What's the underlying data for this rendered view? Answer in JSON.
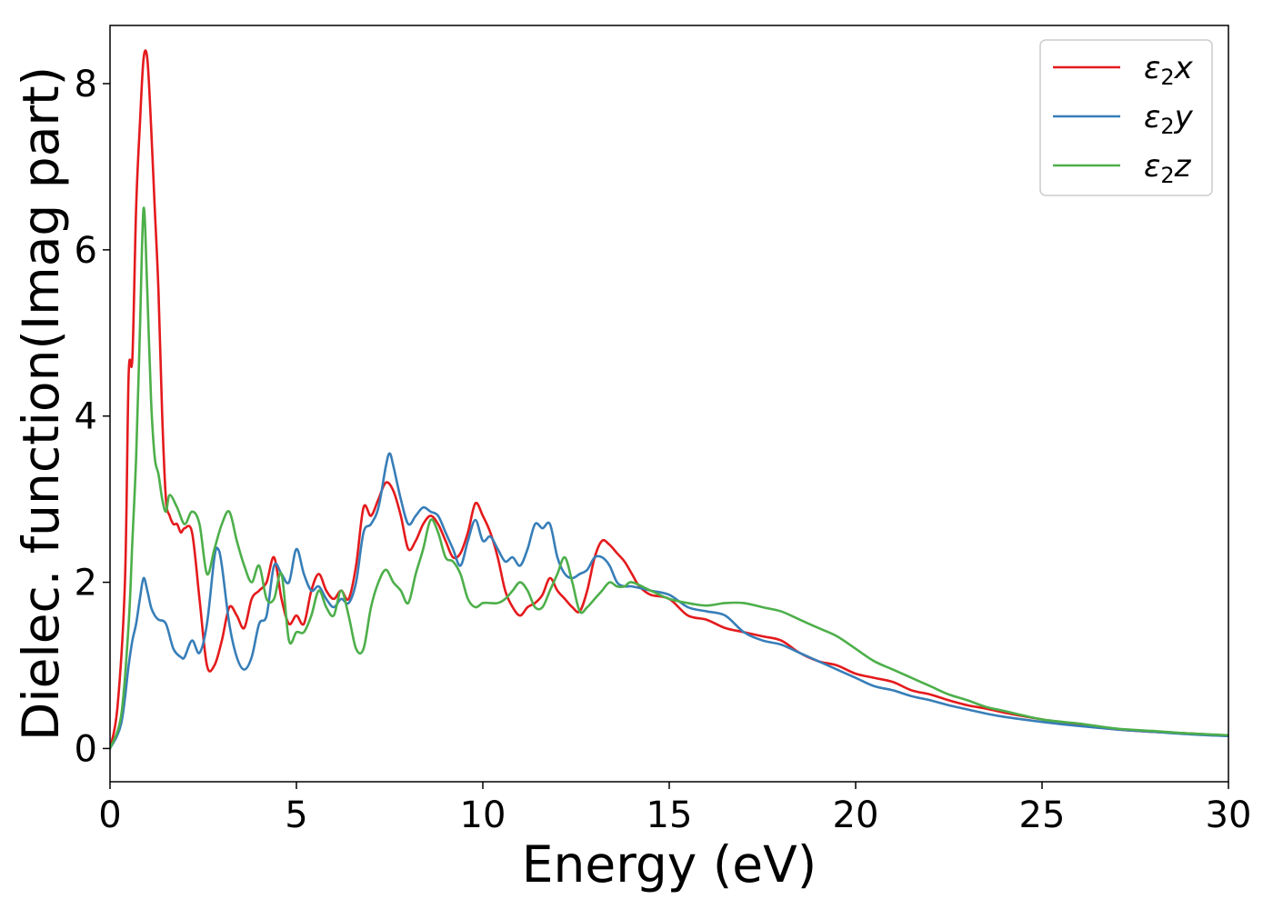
{
  "chart_data": {
    "type": "line",
    "title": "",
    "xlabel": "Energy (eV)",
    "ylabel": "Dielec. function(Imag part)",
    "xlim": [
      0,
      30
    ],
    "ylim": [
      -0.4,
      8.7
    ],
    "xticks": [
      0,
      5,
      10,
      15,
      20,
      25,
      30
    ],
    "yticks": [
      0,
      2,
      4,
      6,
      8
    ],
    "grid": false,
    "legend_position": "top-right",
    "series": [
      {
        "name": "ε2x",
        "legend_base": "ε",
        "legend_sub": "2",
        "legend_var": "x",
        "color": "#e41a1c",
        "x": [
          0,
          0.2,
          0.4,
          0.5,
          0.6,
          0.7,
          0.8,
          0.9,
          1.0,
          1.1,
          1.2,
          1.3,
          1.4,
          1.5,
          1.6,
          1.7,
          1.8,
          1.9,
          2.0,
          2.2,
          2.4,
          2.6,
          2.8,
          3.0,
          3.2,
          3.4,
          3.6,
          3.8,
          4.0,
          4.2,
          4.4,
          4.6,
          4.8,
          5.0,
          5.2,
          5.4,
          5.6,
          5.8,
          6.0,
          6.2,
          6.4,
          6.6,
          6.8,
          7.0,
          7.2,
          7.4,
          7.6,
          7.8,
          8.0,
          8.2,
          8.4,
          8.6,
          8.8,
          9.0,
          9.2,
          9.4,
          9.6,
          9.8,
          10.0,
          10.2,
          10.4,
          10.6,
          10.8,
          11.0,
          11.2,
          11.4,
          11.6,
          11.8,
          12.0,
          12.2,
          12.4,
          12.6,
          12.8,
          13.0,
          13.2,
          13.4,
          13.6,
          13.8,
          14.0,
          14.2,
          14.5,
          15.0,
          15.5,
          16.0,
          16.5,
          17.0,
          17.5,
          18.0,
          18.5,
          19.0,
          19.5,
          20.0,
          20.5,
          21.0,
          21.5,
          22.0,
          22.5,
          23.0,
          23.5,
          24.0,
          25.0,
          26.0,
          27.0,
          28.0,
          29.0,
          30.0
        ],
        "y": [
          0,
          0.5,
          2.0,
          4.5,
          4.7,
          6.5,
          7.5,
          8.3,
          8.3,
          7.5,
          6.5,
          5.5,
          4.0,
          3.0,
          2.8,
          2.7,
          2.7,
          2.6,
          2.65,
          2.6,
          1.8,
          1.0,
          1.0,
          1.3,
          1.7,
          1.6,
          1.45,
          1.8,
          1.9,
          2.0,
          2.3,
          1.8,
          1.5,
          1.6,
          1.5,
          1.9,
          2.1,
          1.9,
          1.8,
          1.9,
          1.8,
          2.2,
          2.9,
          2.8,
          3.0,
          3.2,
          3.1,
          2.8,
          2.4,
          2.5,
          2.7,
          2.8,
          2.7,
          2.5,
          2.3,
          2.35,
          2.6,
          2.95,
          2.8,
          2.6,
          2.3,
          1.9,
          1.7,
          1.6,
          1.7,
          1.75,
          1.85,
          2.05,
          1.9,
          1.8,
          1.7,
          1.65,
          1.9,
          2.3,
          2.5,
          2.45,
          2.35,
          2.25,
          2.1,
          1.95,
          1.85,
          1.8,
          1.6,
          1.55,
          1.45,
          1.4,
          1.35,
          1.3,
          1.15,
          1.05,
          1.0,
          0.9,
          0.85,
          0.8,
          0.7,
          0.65,
          0.58,
          0.52,
          0.48,
          0.43,
          0.35,
          0.28,
          0.23,
          0.2,
          0.18,
          0.15
        ]
      },
      {
        "name": "ε2y",
        "legend_base": "ε",
        "legend_sub": "2",
        "legend_var": "y",
        "color": "#377eb8",
        "x": [
          0,
          0.3,
          0.5,
          0.6,
          0.7,
          0.8,
          0.9,
          1.0,
          1.1,
          1.2,
          1.3,
          1.5,
          1.7,
          1.9,
          2.0,
          2.2,
          2.4,
          2.6,
          2.8,
          2.9,
          3.0,
          3.2,
          3.4,
          3.6,
          3.8,
          4.0,
          4.2,
          4.4,
          4.6,
          4.8,
          5.0,
          5.2,
          5.4,
          5.6,
          5.8,
          6.0,
          6.2,
          6.4,
          6.6,
          6.8,
          7.0,
          7.2,
          7.4,
          7.5,
          7.6,
          7.8,
          8.0,
          8.2,
          8.4,
          8.6,
          8.8,
          9.0,
          9.2,
          9.4,
          9.6,
          9.8,
          10.0,
          10.2,
          10.4,
          10.6,
          10.8,
          11.0,
          11.2,
          11.4,
          11.6,
          11.8,
          12.0,
          12.2,
          12.4,
          12.6,
          12.8,
          13.0,
          13.2,
          13.4,
          13.6,
          13.8,
          14.0,
          14.5,
          15.0,
          15.5,
          16.0,
          16.5,
          17.0,
          17.5,
          18.0,
          18.5,
          19.0,
          19.5,
          20.0,
          20.5,
          21.0,
          21.5,
          22.0,
          22.5,
          23.0,
          23.5,
          24.0,
          25.0,
          26.0,
          27.0,
          28.0,
          29.0,
          30.0
        ],
        "y": [
          0,
          0.3,
          1.0,
          1.3,
          1.5,
          1.8,
          2.05,
          1.9,
          1.7,
          1.6,
          1.55,
          1.5,
          1.2,
          1.1,
          1.1,
          1.3,
          1.15,
          1.5,
          2.3,
          2.4,
          2.2,
          1.5,
          1.1,
          0.95,
          1.1,
          1.5,
          1.6,
          2.2,
          2.1,
          2.0,
          2.4,
          2.1,
          1.9,
          1.95,
          1.8,
          1.7,
          1.8,
          1.75,
          2.0,
          2.6,
          2.7,
          2.9,
          3.4,
          3.55,
          3.4,
          3.0,
          2.7,
          2.8,
          2.9,
          2.85,
          2.8,
          2.6,
          2.4,
          2.2,
          2.5,
          2.75,
          2.5,
          2.55,
          2.4,
          2.25,
          2.3,
          2.2,
          2.4,
          2.7,
          2.65,
          2.7,
          2.3,
          2.1,
          2.05,
          2.1,
          2.15,
          2.3,
          2.3,
          2.2,
          2.0,
          1.95,
          1.95,
          1.9,
          1.85,
          1.7,
          1.65,
          1.6,
          1.4,
          1.3,
          1.25,
          1.15,
          1.05,
          0.95,
          0.85,
          0.75,
          0.7,
          0.63,
          0.58,
          0.52,
          0.47,
          0.42,
          0.38,
          0.32,
          0.27,
          0.23,
          0.2,
          0.17,
          0.15
        ]
      },
      {
        "name": "ε2z",
        "legend_base": "ε",
        "legend_sub": "2",
        "legend_var": "z",
        "color": "#4daf4a",
        "x": [
          0,
          0.3,
          0.5,
          0.6,
          0.7,
          0.8,
          0.9,
          1.0,
          1.1,
          1.2,
          1.3,
          1.4,
          1.5,
          1.6,
          1.8,
          2.0,
          2.2,
          2.4,
          2.6,
          2.8,
          3.0,
          3.2,
          3.4,
          3.6,
          3.8,
          4.0,
          4.2,
          4.4,
          4.6,
          4.8,
          5.0,
          5.2,
          5.4,
          5.6,
          5.8,
          6.0,
          6.2,
          6.4,
          6.6,
          6.8,
          7.0,
          7.2,
          7.4,
          7.6,
          7.8,
          8.0,
          8.2,
          8.4,
          8.6,
          8.8,
          9.0,
          9.2,
          9.4,
          9.6,
          9.8,
          10.0,
          10.2,
          10.4,
          10.6,
          10.8,
          11.0,
          11.2,
          11.4,
          11.6,
          11.8,
          12.0,
          12.2,
          12.4,
          12.6,
          12.8,
          13.0,
          13.2,
          13.4,
          13.6,
          13.8,
          14.0,
          14.5,
          15.0,
          15.5,
          16.0,
          16.5,
          17.0,
          17.5,
          18.0,
          18.5,
          19.0,
          19.5,
          20.0,
          20.5,
          21.0,
          21.5,
          22.0,
          22.5,
          23.0,
          23.5,
          24.0,
          25.0,
          26.0,
          27.0,
          28.0,
          29.0,
          30.0
        ],
        "y": [
          0,
          0.4,
          1.5,
          2.5,
          3.5,
          5.0,
          6.5,
          5.5,
          4.2,
          3.5,
          3.3,
          3.0,
          2.85,
          3.05,
          2.9,
          2.7,
          2.85,
          2.7,
          2.1,
          2.4,
          2.7,
          2.85,
          2.5,
          2.2,
          2.0,
          2.2,
          1.8,
          1.8,
          2.1,
          1.3,
          1.4,
          1.4,
          1.6,
          1.9,
          1.7,
          1.6,
          1.9,
          1.6,
          1.2,
          1.2,
          1.7,
          2.0,
          2.15,
          2.0,
          1.9,
          1.75,
          2.1,
          2.4,
          2.75,
          2.6,
          2.3,
          2.25,
          2.1,
          1.8,
          1.7,
          1.75,
          1.75,
          1.75,
          1.8,
          1.9,
          2.0,
          1.9,
          1.7,
          1.7,
          1.9,
          2.1,
          2.3,
          2.0,
          1.65,
          1.7,
          1.8,
          1.9,
          2.0,
          1.95,
          1.95,
          2.0,
          1.9,
          1.8,
          1.75,
          1.72,
          1.75,
          1.75,
          1.7,
          1.65,
          1.55,
          1.45,
          1.35,
          1.2,
          1.05,
          0.95,
          0.85,
          0.75,
          0.65,
          0.58,
          0.5,
          0.45,
          0.35,
          0.3,
          0.24,
          0.21,
          0.18,
          0.16
        ]
      }
    ]
  }
}
